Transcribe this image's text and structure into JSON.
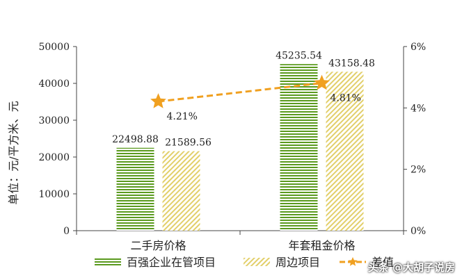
{
  "chart_data": {
    "type": "bar",
    "ylabel": "单位：元/平方米、元",
    "ylim": [
      0,
      50000
    ],
    "y2lim": [
      0,
      6
    ],
    "y_ticks": [
      "0",
      "10000",
      "20000",
      "30000",
      "40000",
      "50000"
    ],
    "y2_ticks": [
      "0%",
      "2%",
      "4%",
      "6%"
    ],
    "categories": [
      "二手房价格",
      "年套租金价格"
    ],
    "series": [
      {
        "name": "百强企业在管项目",
        "values": [
          22498.88,
          45235.54
        ],
        "value_labels": [
          "22498.88",
          "45235.54"
        ],
        "color": "#5a9a1e"
      },
      {
        "name": "周边项目",
        "values": [
          21589.56,
          43158.48
        ],
        "value_labels": [
          "21589.56",
          "43158.48"
        ],
        "color": "#e2cf6a"
      },
      {
        "name": "差值",
        "type": "line",
        "axis": "right",
        "values": [
          4.21,
          4.81
        ],
        "value_labels": [
          "4.21%",
          "4.81%"
        ],
        "color": "#f0a020"
      }
    ],
    "legend_position": "bottom",
    "grid": false
  },
  "watermark": "头条 @大胡子说房"
}
